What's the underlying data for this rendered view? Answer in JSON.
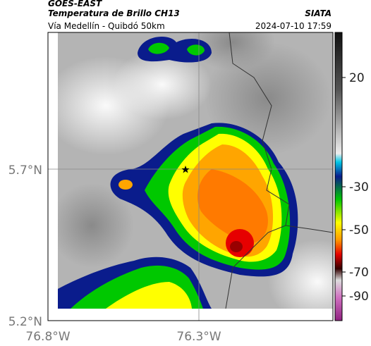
{
  "header": {
    "satellite": "GOES-EAST",
    "title": "Temperatura de Brillo CH13",
    "agency": "SIATA",
    "route": "Vía Medellín - Quibdó 50km",
    "datetime": "2024-07-10 17:59"
  },
  "axes": {
    "latitude_labels": [
      "5.7°N",
      "5.2°N"
    ],
    "longitude_labels": [
      "76.8°W",
      "76.3°W"
    ]
  },
  "colorbar": {
    "ticks": [
      20,
      -30,
      -50,
      -70,
      -90
    ]
  }
}
